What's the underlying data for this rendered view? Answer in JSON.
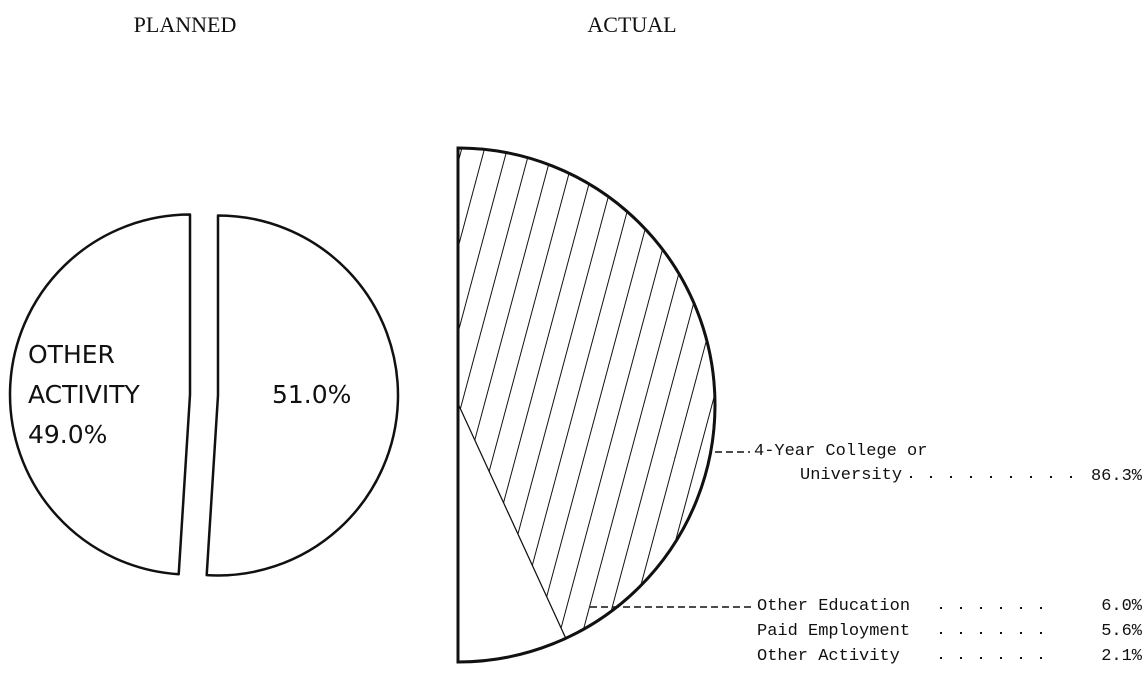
{
  "chart_data": [
    {
      "type": "pie",
      "title": "PLANNED",
      "categories": [
        "OTHER ACTIVITY",
        null
      ],
      "values": [
        49.0,
        51.0
      ],
      "value_labels": [
        "49.0%",
        "51.0%"
      ]
    },
    {
      "type": "halfpie",
      "title": "ACTUAL",
      "categories": [
        "4-Year College or University",
        "Other Education",
        "Paid Employment",
        "Other Activity"
      ],
      "values": [
        86.3,
        6.0,
        5.6,
        2.1
      ],
      "value_labels": [
        "86.3%",
        "6.0%",
        "5.6%",
        "2.1%"
      ]
    }
  ]
}
